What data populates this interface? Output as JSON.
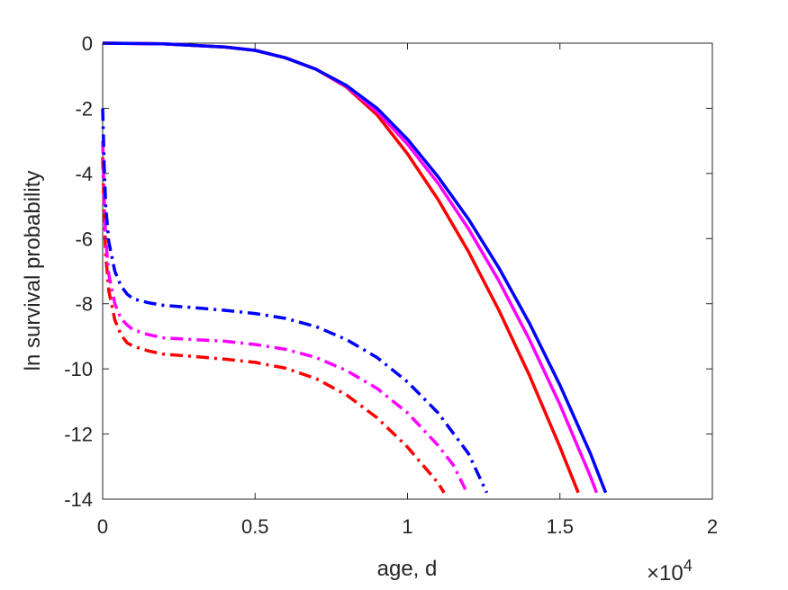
{
  "chart_data": {
    "type": "line",
    "xlabel": "age, d",
    "ylabel": "ln survival probability",
    "x_exponent_label": {
      "base": "×10",
      "power": "4"
    },
    "xlim": [
      0,
      2
    ],
    "ylim": [
      -14,
      0
    ],
    "x_ticks": [
      "0",
      "0.5",
      "1",
      "1.5",
      "2"
    ],
    "y_ticks": [
      "0",
      "-2",
      "-4",
      "-6",
      "-8",
      "-10",
      "-12",
      "-14"
    ],
    "x_tick_values": [
      0,
      0.5,
      1,
      1.5,
      2
    ],
    "y_tick_values": [
      0,
      -2,
      -4,
      -6,
      -8,
      -10,
      -12,
      -14
    ],
    "grid": false,
    "colors": {
      "red": "#ff0000",
      "magenta": "#ff00ff",
      "blue": "#0000ff",
      "axis": "#262626"
    },
    "series": [
      {
        "color": "#ff0000",
        "style": "solid",
        "x": [
          0,
          0.2,
          0.4,
          0.5,
          0.6,
          0.7,
          0.8,
          0.9,
          1.0,
          1.1,
          1.2,
          1.3,
          1.4,
          1.5,
          1.56
        ],
        "y": [
          0,
          -0.02,
          -0.12,
          -0.22,
          -0.45,
          -0.8,
          -1.35,
          -2.2,
          -3.4,
          -4.8,
          -6.4,
          -8.2,
          -10.2,
          -12.4,
          -13.8
        ]
      },
      {
        "color": "#ff00ff",
        "style": "solid",
        "x": [
          0,
          0.2,
          0.4,
          0.5,
          0.6,
          0.7,
          0.8,
          0.9,
          1.0,
          1.1,
          1.2,
          1.3,
          1.4,
          1.5,
          1.6,
          1.62
        ],
        "y": [
          0,
          -0.02,
          -0.12,
          -0.22,
          -0.45,
          -0.8,
          -1.33,
          -2.1,
          -3.1,
          -4.3,
          -5.7,
          -7.3,
          -9.1,
          -11.1,
          -13.3,
          -13.8
        ]
      },
      {
        "color": "#0000ff",
        "style": "solid",
        "x": [
          0,
          0.2,
          0.4,
          0.5,
          0.6,
          0.7,
          0.8,
          0.9,
          1.0,
          1.1,
          1.2,
          1.3,
          1.4,
          1.5,
          1.6,
          1.65
        ],
        "y": [
          0,
          -0.02,
          -0.12,
          -0.22,
          -0.45,
          -0.8,
          -1.3,
          -2.0,
          -2.95,
          -4.1,
          -5.4,
          -6.9,
          -8.6,
          -10.5,
          -12.6,
          -13.8
        ]
      },
      {
        "color": "#ff0000",
        "style": "dashdot",
        "x": [
          0,
          0.005,
          0.01,
          0.02,
          0.04,
          0.06,
          0.08,
          0.1,
          0.15,
          0.2,
          0.3,
          0.4,
          0.5,
          0.6,
          0.7,
          0.8,
          0.9,
          1.0,
          1.05,
          1.1,
          1.12
        ],
        "y": [
          -3.5,
          -5.2,
          -6.5,
          -7.6,
          -8.5,
          -8.95,
          -9.2,
          -9.3,
          -9.45,
          -9.55,
          -9.62,
          -9.7,
          -9.8,
          -9.98,
          -10.3,
          -10.8,
          -11.5,
          -12.4,
          -12.95,
          -13.5,
          -13.8
        ]
      },
      {
        "color": "#ff00ff",
        "style": "dashdot",
        "x": [
          0,
          0.005,
          0.01,
          0.02,
          0.04,
          0.06,
          0.08,
          0.1,
          0.15,
          0.2,
          0.3,
          0.4,
          0.5,
          0.6,
          0.7,
          0.8,
          0.9,
          1.0,
          1.1,
          1.15,
          1.19
        ],
        "y": [
          -3.0,
          -4.8,
          -6.0,
          -7.1,
          -8.0,
          -8.45,
          -8.65,
          -8.8,
          -8.95,
          -9.05,
          -9.1,
          -9.15,
          -9.25,
          -9.4,
          -9.65,
          -10.05,
          -10.6,
          -11.35,
          -12.35,
          -12.95,
          -13.7
        ]
      },
      {
        "color": "#0000ff",
        "style": "dashdot",
        "x": [
          0,
          0.005,
          0.01,
          0.02,
          0.04,
          0.06,
          0.08,
          0.1,
          0.15,
          0.2,
          0.3,
          0.4,
          0.5,
          0.6,
          0.7,
          0.8,
          0.9,
          1.0,
          1.1,
          1.2,
          1.26
        ],
        "y": [
          -2.0,
          -3.8,
          -5.0,
          -6.1,
          -7.0,
          -7.45,
          -7.7,
          -7.85,
          -7.97,
          -8.05,
          -8.12,
          -8.2,
          -8.3,
          -8.45,
          -8.7,
          -9.1,
          -9.65,
          -10.4,
          -11.35,
          -12.6,
          -13.8
        ]
      }
    ]
  }
}
